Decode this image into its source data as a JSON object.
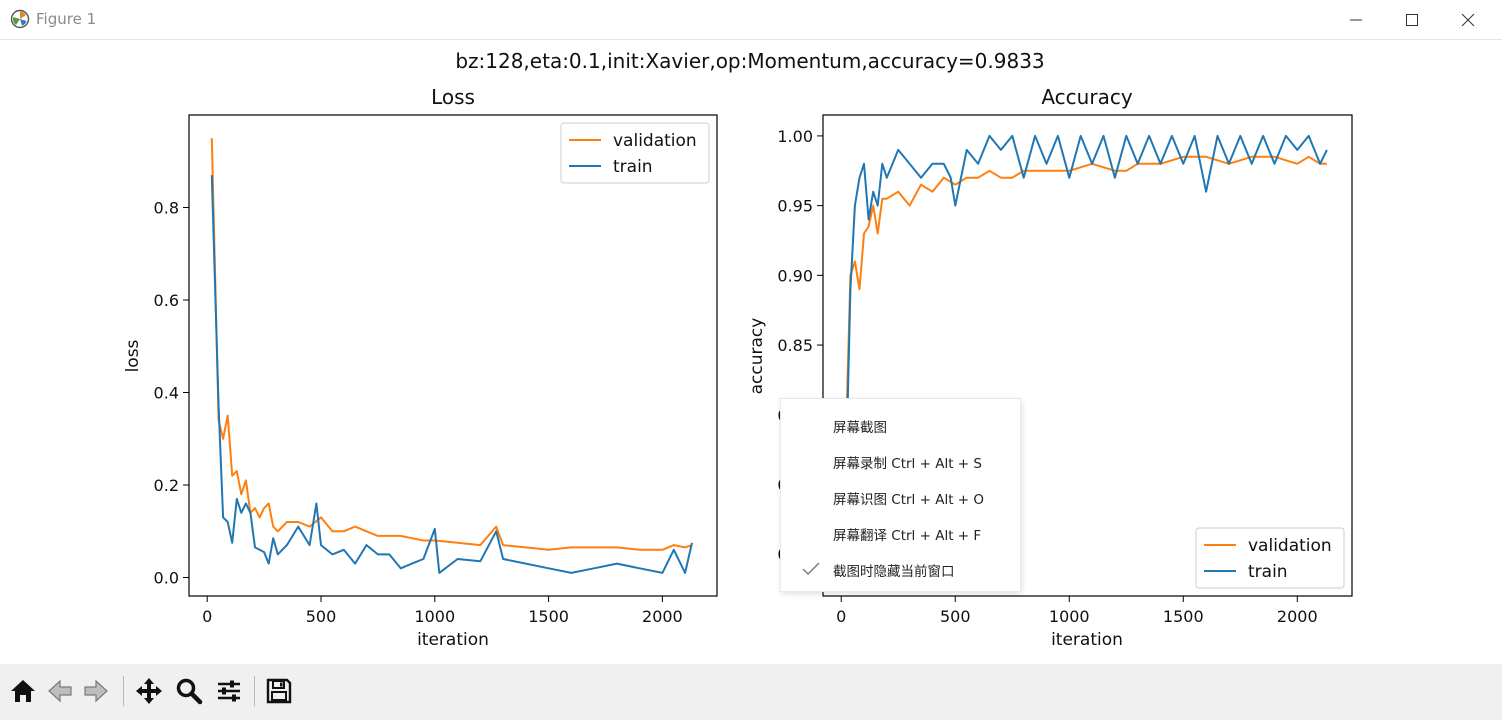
{
  "window": {
    "title": "Figure 1",
    "controls": [
      "minimize-icon",
      "maximize-icon",
      "close-icon"
    ]
  },
  "figure": {
    "suptitle": "bz:128,eta:0.1,init:Xavier,op:Momentum,accuracy=0.9833"
  },
  "colors": {
    "validation": "#ff7f0e",
    "train": "#1f77b4"
  },
  "chart_data": [
    {
      "type": "line",
      "title": "Loss",
      "xlabel": "iteration",
      "ylabel": "loss",
      "xlim": [
        -80,
        2240
      ],
      "ylim": [
        -0.04,
        1.0
      ],
      "xticks": [
        0,
        500,
        1000,
        1500,
        2000
      ],
      "yticks": [
        0.0,
        0.2,
        0.4,
        0.6,
        0.8
      ],
      "ytick_labels": [
        "0.0",
        "0.2",
        "0.4",
        "0.6",
        "0.8"
      ],
      "legend_placement": "upper-right",
      "series": [
        {
          "name": "validation",
          "x": [
            20,
            50,
            70,
            90,
            110,
            130,
            150,
            170,
            190,
            210,
            230,
            250,
            270,
            290,
            310,
            350,
            400,
            450,
            500,
            550,
            600,
            650,
            700,
            750,
            800,
            850,
            900,
            950,
            1000,
            1100,
            1200,
            1270,
            1300,
            1400,
            1500,
            1600,
            1700,
            1800,
            1900,
            2000,
            2050,
            2100,
            2130
          ],
          "y": [
            0.95,
            0.34,
            0.3,
            0.35,
            0.22,
            0.23,
            0.18,
            0.21,
            0.14,
            0.15,
            0.13,
            0.15,
            0.16,
            0.11,
            0.1,
            0.12,
            0.12,
            0.11,
            0.13,
            0.1,
            0.1,
            0.11,
            0.1,
            0.09,
            0.09,
            0.09,
            0.085,
            0.08,
            0.08,
            0.075,
            0.07,
            0.11,
            0.07,
            0.065,
            0.06,
            0.065,
            0.065,
            0.065,
            0.06,
            0.06,
            0.07,
            0.065,
            0.07
          ]
        },
        {
          "name": "train",
          "x": [
            20,
            50,
            70,
            90,
            110,
            130,
            150,
            170,
            190,
            210,
            230,
            250,
            270,
            290,
            310,
            350,
            400,
            450,
            480,
            500,
            550,
            600,
            650,
            700,
            750,
            800,
            850,
            900,
            950,
            1000,
            1020,
            1100,
            1200,
            1270,
            1300,
            1400,
            1500,
            1600,
            1700,
            1800,
            1900,
            2000,
            2050,
            2100,
            2130
          ],
          "y": [
            0.87,
            0.37,
            0.13,
            0.12,
            0.075,
            0.17,
            0.14,
            0.16,
            0.14,
            0.065,
            0.06,
            0.055,
            0.03,
            0.085,
            0.05,
            0.07,
            0.11,
            0.07,
            0.16,
            0.07,
            0.05,
            0.06,
            0.03,
            0.07,
            0.05,
            0.05,
            0.02,
            0.03,
            0.04,
            0.105,
            0.01,
            0.04,
            0.035,
            0.1,
            0.04,
            0.03,
            0.02,
            0.01,
            0.02,
            0.03,
            0.02,
            0.01,
            0.06,
            0.01,
            0.075
          ]
        }
      ]
    },
    {
      "type": "line",
      "title": "Accuracy",
      "xlabel": "iteration",
      "ylabel": "accuracy",
      "xlim": [
        -80,
        2240
      ],
      "ylim": [
        0.67,
        1.015
      ],
      "xticks": [
        0,
        500,
        1000,
        1500,
        2000
      ],
      "yticks": [
        0.7,
        0.75,
        0.8,
        0.85,
        0.9,
        0.95,
        1.0
      ],
      "ytick_labels": [
        "0.70",
        "0.75",
        "0.80",
        "0.85",
        "0.90",
        "0.95",
        "1.00"
      ],
      "legend_placement": "lower-right",
      "series": [
        {
          "name": "validation",
          "x": [
            20,
            40,
            60,
            80,
            100,
            120,
            140,
            160,
            180,
            200,
            250,
            300,
            350,
            400,
            450,
            500,
            550,
            600,
            650,
            700,
            750,
            800,
            850,
            900,
            950,
            1000,
            1100,
            1200,
            1250,
            1300,
            1400,
            1500,
            1600,
            1700,
            1800,
            1900,
            2000,
            2050,
            2100,
            2130
          ],
          "y": [
            0.78,
            0.9,
            0.91,
            0.89,
            0.93,
            0.935,
            0.95,
            0.93,
            0.955,
            0.955,
            0.96,
            0.95,
            0.965,
            0.96,
            0.97,
            0.965,
            0.97,
            0.97,
            0.975,
            0.97,
            0.97,
            0.975,
            0.975,
            0.975,
            0.975,
            0.975,
            0.98,
            0.975,
            0.975,
            0.98,
            0.98,
            0.985,
            0.985,
            0.98,
            0.985,
            0.985,
            0.98,
            0.985,
            0.98,
            0.98
          ]
        },
        {
          "name": "train",
          "x": [
            20,
            40,
            60,
            80,
            100,
            120,
            140,
            160,
            180,
            200,
            250,
            300,
            350,
            400,
            450,
            480,
            500,
            550,
            600,
            650,
            700,
            750,
            800,
            850,
            900,
            950,
            1000,
            1050,
            1100,
            1150,
            1200,
            1250,
            1300,
            1350,
            1400,
            1450,
            1500,
            1550,
            1600,
            1650,
            1700,
            1750,
            1800,
            1850,
            1900,
            1950,
            2000,
            2050,
            2100,
            2130
          ],
          "y": [
            0.75,
            0.89,
            0.95,
            0.97,
            0.98,
            0.94,
            0.96,
            0.95,
            0.98,
            0.97,
            0.99,
            0.98,
            0.97,
            0.98,
            0.98,
            0.97,
            0.95,
            0.99,
            0.98,
            1.0,
            0.99,
            1.0,
            0.97,
            1.0,
            0.98,
            1.0,
            0.97,
            1.0,
            0.98,
            1.0,
            0.97,
            1.0,
            0.98,
            1.0,
            0.98,
            1.0,
            0.98,
            1.0,
            0.96,
            1.0,
            0.98,
            1.0,
            0.98,
            1.0,
            0.98,
            1.0,
            0.99,
            1.0,
            0.98,
            0.99
          ]
        }
      ]
    }
  ],
  "context_menu": {
    "items": [
      {
        "label": "屏幕截图",
        "checked": false
      },
      {
        "label": "屏幕录制 Ctrl + Alt + S",
        "checked": false
      },
      {
        "label": "屏幕识图 Ctrl + Alt + O",
        "checked": false
      },
      {
        "label": "屏幕翻译 Ctrl + Alt + F",
        "checked": false
      },
      {
        "label": "截图时隐藏当前窗口",
        "checked": true
      }
    ]
  },
  "toolbar": {
    "buttons": [
      "home-icon",
      "back-arrow-icon",
      "forward-arrow-icon",
      "pan-icon",
      "zoom-icon",
      "configure-subplots-icon",
      "save-icon"
    ]
  }
}
